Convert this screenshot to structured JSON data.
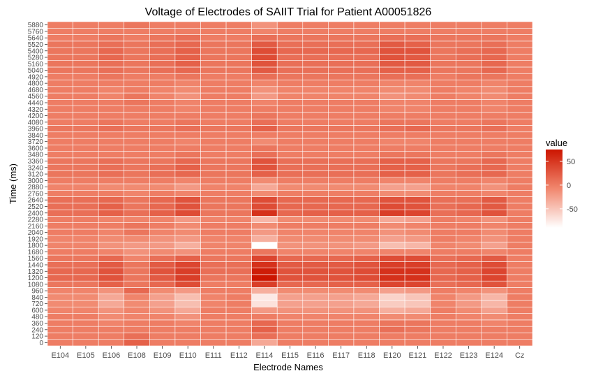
{
  "chart_data": {
    "type": "heatmap",
    "title": "Voltage of Electrodes of SAIIT Trial for Patient A00051826",
    "xlabel": "Electrode Names",
    "ylabel": "Time (ms)",
    "x_categories": [
      "E104",
      "E105",
      "E106",
      "E108",
      "E109",
      "E110",
      "E111",
      "E112",
      "E114",
      "E115",
      "E116",
      "E117",
      "E118",
      "E120",
      "E121",
      "E122",
      "E123",
      "E124",
      "Cz"
    ],
    "y_categories": [
      0,
      120,
      240,
      360,
      480,
      600,
      720,
      840,
      960,
      1080,
      1200,
      1320,
      1440,
      1560,
      1680,
      1800,
      1920,
      2040,
      2160,
      2280,
      2400,
      2520,
      2640,
      2760,
      2880,
      3000,
      3120,
      3240,
      3360,
      3480,
      3600,
      3720,
      3840,
      3960,
      4080,
      4200,
      4320,
      4440,
      4560,
      4680,
      4800,
      4920,
      5040,
      5160,
      5280,
      5400,
      5520,
      5640,
      5760,
      5880
    ],
    "colorbar": {
      "title": "value",
      "ticks": [
        50,
        0,
        -50
      ],
      "low_color": "#ffffff",
      "high_color": "#cc1500",
      "range": [
        -90,
        75
      ]
    },
    "values": [
      [
        0,
        0,
        0,
        20,
        0,
        0,
        0,
        0,
        -30,
        0,
        0,
        0,
        0,
        0,
        0,
        0,
        0,
        0,
        0
      ],
      [
        0,
        0,
        0,
        10,
        0,
        0,
        0,
        0,
        10,
        0,
        0,
        0,
        0,
        0,
        0,
        0,
        0,
        0,
        0
      ],
      [
        0,
        0,
        0,
        0,
        0,
        0,
        0,
        0,
        20,
        0,
        0,
        0,
        0,
        10,
        5,
        0,
        0,
        0,
        0
      ],
      [
        0,
        0,
        -5,
        0,
        0,
        -5,
        0,
        0,
        15,
        0,
        0,
        0,
        0,
        5,
        5,
        0,
        0,
        -5,
        0
      ],
      [
        0,
        0,
        -10,
        -5,
        -5,
        -15,
        0,
        0,
        0,
        -5,
        -5,
        -5,
        -5,
        -10,
        -10,
        0,
        -5,
        -10,
        0
      ],
      [
        -5,
        -5,
        -15,
        -5,
        -15,
        -30,
        0,
        0,
        -20,
        -15,
        -15,
        -15,
        -15,
        -35,
        -30,
        0,
        -10,
        -25,
        0
      ],
      [
        -10,
        -10,
        -30,
        -10,
        -25,
        -45,
        -5,
        0,
        -70,
        -25,
        -25,
        -25,
        -30,
        -55,
        -50,
        -5,
        -20,
        -40,
        0
      ],
      [
        -10,
        -10,
        -30,
        -5,
        -25,
        -45,
        -5,
        0,
        -75,
        -25,
        -25,
        -25,
        -30,
        -60,
        -50,
        -5,
        -20,
        -40,
        0
      ],
      [
        -5,
        -5,
        -15,
        15,
        -10,
        -20,
        0,
        0,
        -35,
        -10,
        -10,
        -10,
        -10,
        -25,
        -20,
        0,
        -5,
        -15,
        0
      ],
      [
        5,
        5,
        20,
        5,
        15,
        35,
        0,
        0,
        45,
        15,
        15,
        20,
        20,
        40,
        40,
        10,
        15,
        30,
        0
      ],
      [
        15,
        15,
        30,
        5,
        25,
        45,
        5,
        5,
        75,
        30,
        30,
        30,
        35,
        55,
        55,
        15,
        20,
        40,
        0
      ],
      [
        15,
        15,
        30,
        5,
        30,
        45,
        10,
        10,
        70,
        30,
        30,
        30,
        35,
        55,
        55,
        15,
        20,
        40,
        0
      ],
      [
        10,
        10,
        25,
        5,
        25,
        40,
        10,
        10,
        55,
        25,
        25,
        25,
        30,
        45,
        45,
        15,
        20,
        35,
        0
      ],
      [
        5,
        5,
        15,
        -5,
        10,
        20,
        5,
        5,
        40,
        15,
        15,
        15,
        20,
        35,
        35,
        10,
        15,
        25,
        0
      ],
      [
        0,
        0,
        -5,
        -15,
        -10,
        -15,
        0,
        0,
        5,
        -5,
        -5,
        -5,
        -5,
        -5,
        -5,
        0,
        0,
        -5,
        0
      ],
      [
        -5,
        -5,
        -15,
        -20,
        -20,
        -35,
        -5,
        -5,
        -90,
        -15,
        -15,
        -15,
        -20,
        -45,
        -40,
        -5,
        -10,
        -25,
        0
      ],
      [
        -5,
        -5,
        -10,
        -10,
        -15,
        -20,
        -5,
        -5,
        -35,
        -10,
        -10,
        -10,
        -10,
        -25,
        -20,
        0,
        -5,
        -15,
        0
      ],
      [
        0,
        0,
        -5,
        5,
        -5,
        -10,
        0,
        0,
        -20,
        -5,
        -5,
        -5,
        -5,
        -15,
        -10,
        0,
        0,
        -10,
        0
      ],
      [
        0,
        0,
        0,
        5,
        0,
        -10,
        0,
        0,
        -10,
        0,
        0,
        0,
        0,
        -10,
        -5,
        0,
        0,
        -5,
        0
      ],
      [
        0,
        0,
        -5,
        -5,
        -5,
        -20,
        -5,
        -5,
        -40,
        -10,
        -10,
        -10,
        -10,
        -30,
        -25,
        0,
        -5,
        -15,
        0
      ],
      [
        10,
        10,
        20,
        10,
        20,
        35,
        5,
        5,
        55,
        15,
        20,
        20,
        20,
        45,
        40,
        10,
        15,
        30,
        0
      ],
      [
        10,
        10,
        20,
        5,
        15,
        30,
        5,
        5,
        35,
        15,
        15,
        15,
        15,
        35,
        30,
        10,
        15,
        25,
        0
      ],
      [
        10,
        10,
        15,
        5,
        15,
        30,
        5,
        5,
        35,
        15,
        15,
        15,
        15,
        30,
        30,
        10,
        10,
        25,
        0
      ],
      [
        0,
        0,
        0,
        -5,
        0,
        -5,
        0,
        0,
        -10,
        0,
        0,
        0,
        0,
        -10,
        -10,
        0,
        0,
        -5,
        0
      ],
      [
        -5,
        -5,
        -10,
        -10,
        -10,
        -20,
        -5,
        -5,
        -30,
        -10,
        -10,
        -10,
        -10,
        -25,
        -25,
        -5,
        -5,
        -15,
        0
      ],
      [
        0,
        0,
        0,
        0,
        0,
        -5,
        0,
        0,
        -10,
        0,
        0,
        0,
        0,
        -5,
        -5,
        0,
        0,
        -5,
        0
      ],
      [
        5,
        5,
        10,
        5,
        10,
        15,
        5,
        5,
        20,
        10,
        10,
        10,
        10,
        20,
        20,
        5,
        10,
        15,
        0
      ],
      [
        5,
        5,
        10,
        5,
        10,
        20,
        5,
        5,
        30,
        10,
        10,
        10,
        10,
        20,
        20,
        5,
        10,
        15,
        0
      ],
      [
        5,
        5,
        10,
        5,
        5,
        15,
        5,
        5,
        30,
        10,
        10,
        10,
        10,
        20,
        20,
        5,
        5,
        15,
        0
      ],
      [
        0,
        0,
        0,
        0,
        0,
        5,
        0,
        0,
        10,
        0,
        0,
        0,
        0,
        5,
        5,
        0,
        0,
        5,
        0
      ],
      [
        0,
        0,
        0,
        0,
        0,
        0,
        0,
        0,
        5,
        0,
        0,
        0,
        0,
        0,
        0,
        0,
        0,
        0,
        0
      ],
      [
        0,
        0,
        0,
        0,
        0,
        -5,
        0,
        0,
        -10,
        0,
        0,
        0,
        0,
        -5,
        -5,
        0,
        0,
        0,
        0
      ],
      [
        0,
        0,
        0,
        0,
        0,
        0,
        0,
        0,
        0,
        0,
        0,
        0,
        0,
        0,
        0,
        0,
        0,
        0,
        0
      ],
      [
        5,
        5,
        10,
        5,
        5,
        10,
        5,
        5,
        20,
        5,
        5,
        5,
        5,
        10,
        15,
        5,
        5,
        10,
        0
      ],
      [
        0,
        0,
        5,
        0,
        0,
        5,
        0,
        0,
        10,
        0,
        0,
        0,
        0,
        5,
        5,
        0,
        0,
        5,
        0
      ],
      [
        0,
        0,
        0,
        0,
        0,
        0,
        0,
        0,
        5,
        0,
        0,
        0,
        0,
        0,
        0,
        0,
        0,
        0,
        0
      ],
      [
        0,
        0,
        0,
        0,
        0,
        -5,
        0,
        0,
        0,
        0,
        0,
        0,
        0,
        -5,
        -5,
        0,
        0,
        -5,
        0
      ],
      [
        0,
        0,
        0,
        5,
        0,
        -5,
        0,
        0,
        -5,
        0,
        0,
        0,
        0,
        -5,
        -5,
        0,
        0,
        -5,
        0
      ],
      [
        0,
        0,
        -5,
        5,
        -5,
        -15,
        0,
        0,
        -20,
        -5,
        -5,
        -5,
        -5,
        -15,
        -10,
        0,
        -5,
        -10,
        0
      ],
      [
        0,
        0,
        -5,
        0,
        -5,
        -10,
        0,
        0,
        -15,
        -5,
        -5,
        -5,
        -5,
        -10,
        -10,
        0,
        -5,
        -10,
        0
      ],
      [
        0,
        0,
        0,
        0,
        0,
        -5,
        0,
        0,
        -5,
        0,
        0,
        0,
        0,
        -5,
        -5,
        0,
        0,
        -5,
        0
      ],
      [
        0,
        0,
        5,
        0,
        0,
        5,
        0,
        0,
        10,
        5,
        5,
        5,
        5,
        10,
        10,
        0,
        5,
        5,
        0
      ],
      [
        5,
        5,
        10,
        5,
        10,
        15,
        5,
        5,
        25,
        10,
        10,
        10,
        10,
        20,
        20,
        5,
        5,
        15,
        0
      ],
      [
        5,
        5,
        10,
        5,
        10,
        20,
        5,
        5,
        30,
        10,
        10,
        10,
        10,
        25,
        25,
        5,
        5,
        15,
        0
      ],
      [
        5,
        5,
        15,
        5,
        10,
        20,
        5,
        5,
        35,
        10,
        10,
        10,
        10,
        30,
        25,
        5,
        10,
        15,
        0
      ],
      [
        5,
        5,
        15,
        5,
        10,
        20,
        5,
        5,
        35,
        15,
        15,
        15,
        15,
        30,
        30,
        5,
        10,
        15,
        0
      ],
      [
        5,
        5,
        10,
        5,
        10,
        15,
        5,
        5,
        25,
        10,
        10,
        10,
        10,
        25,
        20,
        5,
        5,
        10,
        0
      ],
      [
        0,
        0,
        5,
        0,
        5,
        10,
        0,
        0,
        10,
        5,
        5,
        5,
        5,
        10,
        10,
        5,
        5,
        5,
        0
      ],
      [
        0,
        0,
        0,
        0,
        0,
        0,
        0,
        0,
        -5,
        0,
        0,
        0,
        0,
        0,
        0,
        0,
        0,
        0,
        0
      ],
      [
        0,
        0,
        0,
        5,
        0,
        0,
        0,
        0,
        -15,
        0,
        0,
        0,
        0,
        0,
        0,
        0,
        0,
        0,
        0
      ]
    ]
  }
}
